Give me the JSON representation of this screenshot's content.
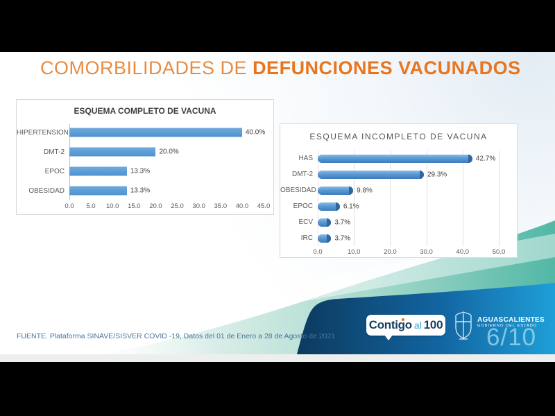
{
  "slide": {
    "title": {
      "light": "COMORBILIDADES DE ",
      "bold": "DEFUNCIONES VACUNADOS"
    },
    "source": "FUENTE. Plataforma SINAVE/SISVER COVID -19, Datos del 01 de Enero a 28 de Agosto de 2021",
    "page_number": "6/10"
  },
  "branding": {
    "contigo": {
      "part1": "Contigo",
      "part2": "al",
      "part3": "100"
    },
    "government": {
      "name": "AGUASCALIENTES",
      "subtitle": "GOBIERNO DEL ESTADO"
    }
  },
  "colors": {
    "accent_orange": "#e8761f",
    "bar_blue": "#5b9bd5",
    "teal_wave": "#52b7a5",
    "corner_navy": "#0c3a5e",
    "corner_blue": "#1f9fd8",
    "source_text": "#4b7399"
  },
  "chart_data": [
    {
      "type": "bar",
      "orientation": "horizontal",
      "title": "ESQUEMA COMPLETO DE VACUNA",
      "categories": [
        "HIPERTENSION",
        "DMT-2",
        "EPOC",
        "OBESIDAD"
      ],
      "values": [
        40.0,
        20.0,
        13.3,
        13.3
      ],
      "labels": [
        "40.0%",
        "20.0%",
        "13.3%",
        "13.3%"
      ],
      "xlim": [
        0,
        45
      ],
      "ticks": [
        "0.0",
        "5.0",
        "10.0",
        "15.0",
        "20.0",
        "25.0",
        "30.0",
        "35.0",
        "40.0",
        "45.0"
      ],
      "grid": false,
      "legend": false,
      "bar_color": "#5b9bd5"
    },
    {
      "type": "bar",
      "orientation": "horizontal",
      "title": "ESQUEMA INCOMPLETO DE VACUNA",
      "categories": [
        "HAS",
        "DMT-2",
        "OBESIDAD",
        "EPOC",
        "ECV",
        "IRC"
      ],
      "values": [
        42.7,
        29.3,
        9.8,
        6.1,
        3.7,
        3.7
      ],
      "labels": [
        "42.7%",
        "29.3%",
        "9.8%",
        "6.1%",
        "3.7%",
        "3.7%"
      ],
      "xlim": [
        0,
        50
      ],
      "ticks": [
        "0.0",
        "10.0",
        "20.0",
        "30.0",
        "40.0",
        "50.0"
      ],
      "grid": true,
      "legend": false,
      "bar_color": "#5b9bd5"
    }
  ]
}
